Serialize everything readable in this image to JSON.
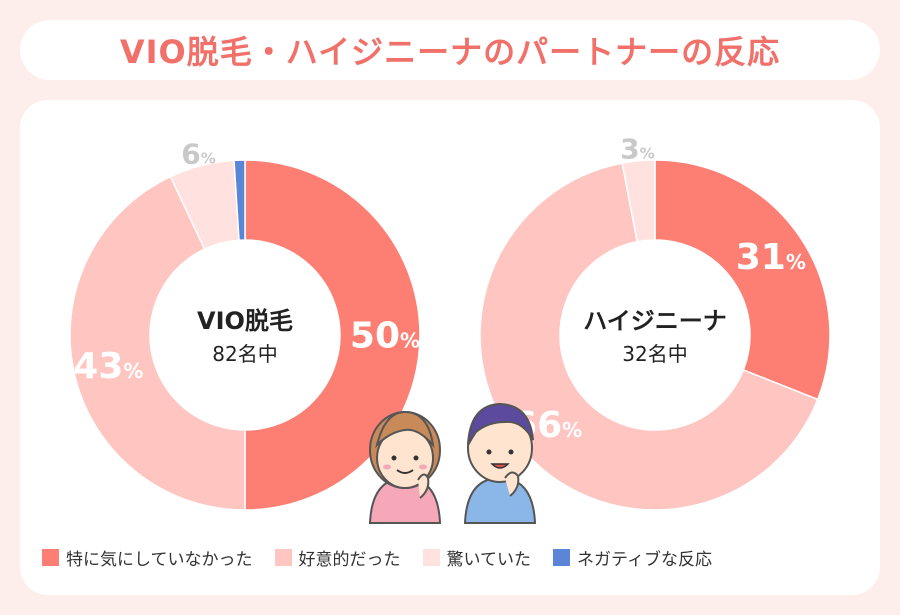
{
  "title": "VIO脱毛・ハイジニーナのパートナーの反応",
  "colors": {
    "text_accent": "#f1716a",
    "slice_1": "#fd7f74",
    "slice_2": "#fec5c1",
    "slice_3": "#ffe1df",
    "slice_4": "#5b85d6"
  },
  "chart_data": [
    {
      "type": "pie",
      "center_title": "VIO脱毛",
      "center_sub": "82名中",
      "slices": [
        {
          "label": "特に気にしていなかった",
          "value": 50,
          "text": "50"
        },
        {
          "label": "好意的だった",
          "value": 43,
          "text": "43"
        },
        {
          "label": "驚いていた",
          "value": 6,
          "text": "6"
        },
        {
          "label": "ネガティブな反応",
          "value": 1,
          "text": ""
        }
      ],
      "unit": "%"
    },
    {
      "type": "pie",
      "center_title": "ハイジニーナ",
      "center_sub": "32名中",
      "slices": [
        {
          "label": "特に気にしていなかった",
          "value": 31,
          "text": "31"
        },
        {
          "label": "好意的だった",
          "value": 66,
          "text": "66"
        },
        {
          "label": "驚いていた",
          "value": 3,
          "text": "3"
        },
        {
          "label": "ネガティブな反応",
          "value": 0,
          "text": ""
        }
      ],
      "unit": "%"
    }
  ],
  "legend": [
    {
      "label": "特に気にしていなかった",
      "color": "#fd7f74"
    },
    {
      "label": "好意的だった",
      "color": "#fec5c1"
    },
    {
      "label": "驚いていた",
      "color": "#ffe1df"
    },
    {
      "label": "ネガティブな反応",
      "color": "#5b85d6"
    }
  ]
}
